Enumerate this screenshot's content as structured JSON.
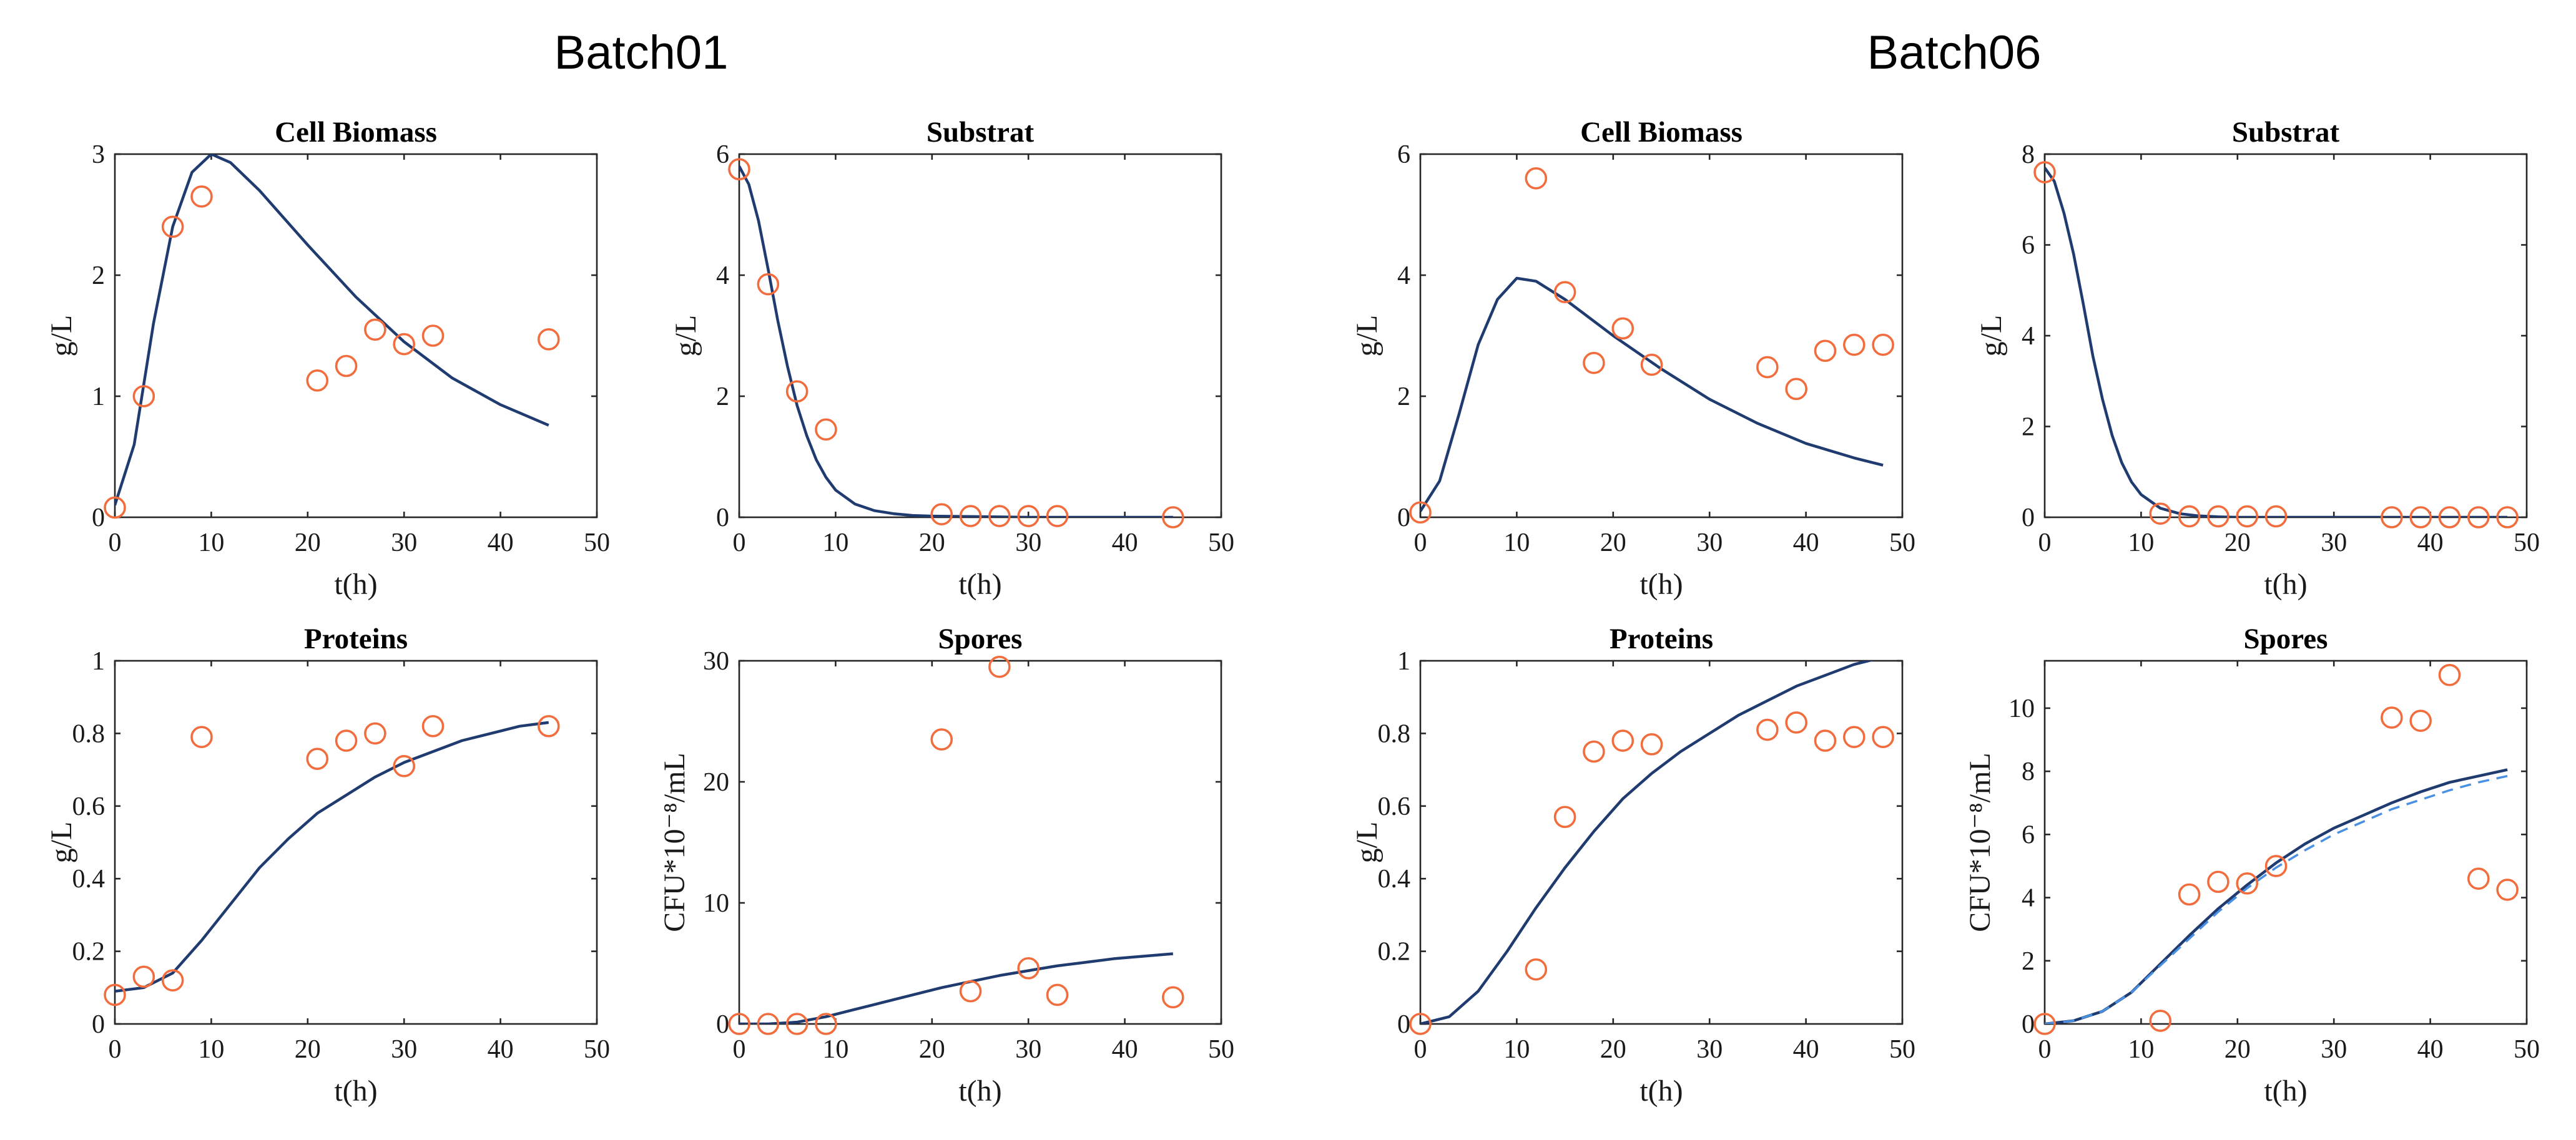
{
  "figure": {
    "batch_titles": [
      "Batch01",
      "Batch06"
    ]
  },
  "chart_data": [
    {
      "id": "b1-biomass",
      "batch": "Batch01",
      "type": "line",
      "title": "Cell Biomass",
      "xlabel": "t(h)",
      "ylabel": "g/L",
      "xlim": [
        0,
        50
      ],
      "ylim": [
        0,
        3
      ],
      "xticks": [
        0,
        10,
        20,
        30,
        40,
        50
      ],
      "yticks": [
        0,
        1,
        2,
        3
      ],
      "series": [
        {
          "name": "model",
          "style": "solid",
          "x": [
            0,
            2,
            4,
            6,
            8,
            10,
            12,
            15,
            20,
            25,
            30,
            35,
            40,
            45
          ],
          "y": [
            0.1,
            0.6,
            1.6,
            2.4,
            2.85,
            3.0,
            2.93,
            2.7,
            2.25,
            1.82,
            1.45,
            1.15,
            0.93,
            0.76
          ]
        },
        {
          "name": "data",
          "style": "marker",
          "x": [
            0,
            3,
            6,
            9,
            21,
            24,
            27,
            30,
            33,
            45
          ],
          "y": [
            0.08,
            1.0,
            2.4,
            2.65,
            1.13,
            1.25,
            1.55,
            1.43,
            1.5,
            1.47
          ]
        }
      ]
    },
    {
      "id": "b1-substrat",
      "batch": "Batch01",
      "type": "line",
      "title": "Substrat",
      "xlabel": "t(h)",
      "ylabel": "g/L",
      "xlim": [
        0,
        50
      ],
      "ylim": [
        0,
        6
      ],
      "xticks": [
        0,
        10,
        20,
        30,
        40,
        50
      ],
      "yticks": [
        0,
        2,
        4,
        6
      ],
      "series": [
        {
          "name": "model",
          "style": "solid",
          "x": [
            0,
            1,
            2,
            3,
            4,
            5,
            6,
            7,
            8,
            9,
            10,
            12,
            14,
            16,
            18,
            20,
            25,
            30,
            35,
            40,
            45
          ],
          "y": [
            5.8,
            5.5,
            4.9,
            4.1,
            3.25,
            2.5,
            1.85,
            1.35,
            0.95,
            0.66,
            0.45,
            0.22,
            0.11,
            0.06,
            0.03,
            0.02,
            0.01,
            0.0,
            0.0,
            0.0,
            0.0
          ]
        },
        {
          "name": "data",
          "style": "marker",
          "x": [
            0,
            3,
            6,
            9,
            21,
            24,
            27,
            30,
            33,
            45
          ],
          "y": [
            5.75,
            3.85,
            2.08,
            1.45,
            0.05,
            0.02,
            0.02,
            0.02,
            0.02,
            0.0
          ]
        }
      ]
    },
    {
      "id": "b6-biomass",
      "batch": "Batch06",
      "type": "line",
      "title": "Cell Biomass",
      "xlabel": "t(h)",
      "ylabel": "g/L",
      "xlim": [
        0,
        50
      ],
      "ylim": [
        0,
        6
      ],
      "xticks": [
        0,
        10,
        20,
        30,
        40,
        50
      ],
      "yticks": [
        0,
        2,
        4,
        6
      ],
      "series": [
        {
          "name": "model",
          "style": "solid",
          "x": [
            0,
            2,
            4,
            6,
            8,
            10,
            12,
            15,
            20,
            25,
            30,
            35,
            40,
            45,
            48
          ],
          "y": [
            0.1,
            0.6,
            1.7,
            2.85,
            3.6,
            3.95,
            3.9,
            3.6,
            3.0,
            2.45,
            1.95,
            1.55,
            1.22,
            0.98,
            0.86
          ]
        },
        {
          "name": "data",
          "style": "marker",
          "x": [
            0,
            12,
            15,
            18,
            21,
            24,
            36,
            39,
            42,
            45,
            48
          ],
          "y": [
            0.08,
            5.6,
            3.72,
            2.55,
            3.12,
            2.52,
            2.48,
            2.12,
            2.75,
            2.85,
            2.85
          ]
        }
      ]
    },
    {
      "id": "b6-substrat",
      "batch": "Batch06",
      "type": "line",
      "title": "Substrat",
      "xlabel": "t(h)",
      "ylabel": "g/L",
      "xlim": [
        0,
        50
      ],
      "ylim": [
        0,
        8
      ],
      "xticks": [
        0,
        10,
        20,
        30,
        40,
        50
      ],
      "yticks": [
        0,
        2,
        4,
        6,
        8
      ],
      "series": [
        {
          "name": "model",
          "style": "solid",
          "x": [
            0,
            1,
            2,
            3,
            4,
            5,
            6,
            7,
            8,
            9,
            10,
            12,
            14,
            16,
            18,
            20,
            25,
            30,
            35,
            40,
            45,
            48
          ],
          "y": [
            7.7,
            7.4,
            6.7,
            5.8,
            4.7,
            3.55,
            2.6,
            1.8,
            1.2,
            0.78,
            0.5,
            0.2,
            0.08,
            0.03,
            0.01,
            0.0,
            0.0,
            0.0,
            0.0,
            0.0,
            0.0,
            0.0
          ]
        },
        {
          "name": "data",
          "style": "marker",
          "x": [
            0,
            12,
            15,
            18,
            21,
            24,
            36,
            39,
            42,
            45,
            48
          ],
          "y": [
            7.6,
            0.08,
            0.02,
            0.02,
            0.02,
            0.02,
            0.0,
            0.0,
            0.0,
            0.0,
            0.0
          ]
        }
      ]
    },
    {
      "id": "b1-proteins",
      "batch": "Batch01",
      "type": "line",
      "title": "Proteins",
      "xlabel": "t(h)",
      "ylabel": "g/L",
      "xlim": [
        0,
        50
      ],
      "ylim": [
        0,
        1
      ],
      "xticks": [
        0,
        10,
        20,
        30,
        40,
        50
      ],
      "yticks": [
        0,
        0.2,
        0.4,
        0.6,
        0.8,
        1
      ],
      "series": [
        {
          "name": "model",
          "style": "solid",
          "x": [
            0,
            3,
            6,
            9,
            12,
            15,
            18,
            21,
            24,
            27,
            30,
            33,
            36,
            39,
            42,
            45
          ],
          "y": [
            0.09,
            0.1,
            0.14,
            0.23,
            0.33,
            0.43,
            0.51,
            0.58,
            0.63,
            0.68,
            0.72,
            0.75,
            0.78,
            0.8,
            0.82,
            0.83
          ]
        },
        {
          "name": "data",
          "style": "marker",
          "x": [
            0,
            3,
            6,
            9,
            21,
            24,
            27,
            30,
            33,
            45
          ],
          "y": [
            0.08,
            0.13,
            0.12,
            0.79,
            0.73,
            0.78,
            0.8,
            0.71,
            0.82,
            0.82
          ]
        }
      ]
    },
    {
      "id": "b1-spores",
      "batch": "Batch01",
      "type": "line",
      "title": "Spores",
      "xlabel": "t(h)",
      "ylabel": "CFU*10⁻⁸/mL",
      "xlim": [
        0,
        50
      ],
      "ylim": [
        0,
        30
      ],
      "xticks": [
        0,
        10,
        20,
        30,
        40,
        50
      ],
      "yticks": [
        0,
        10,
        20,
        30
      ],
      "series": [
        {
          "name": "model",
          "style": "solid",
          "x": [
            0,
            3,
            6,
            9,
            12,
            15,
            18,
            21,
            24,
            27,
            30,
            33,
            36,
            39,
            42,
            45
          ],
          "y": [
            0.0,
            0.0,
            0.15,
            0.6,
            1.2,
            1.8,
            2.4,
            3.0,
            3.5,
            4.0,
            4.4,
            4.8,
            5.1,
            5.4,
            5.6,
            5.8
          ]
        },
        {
          "name": "data",
          "style": "marker",
          "x": [
            0,
            3,
            6,
            9,
            21,
            24,
            27,
            30,
            33,
            45
          ],
          "y": [
            0.0,
            0.0,
            0.0,
            0.0,
            23.5,
            2.7,
            29.5,
            4.6,
            2.4,
            2.2
          ]
        }
      ]
    },
    {
      "id": "b6-proteins",
      "batch": "Batch06",
      "type": "line",
      "title": "Proteins",
      "xlabel": "t(h)",
      "ylabel": "g/L",
      "xlim": [
        0,
        50
      ],
      "ylim": [
        0,
        1
      ],
      "xticks": [
        0,
        10,
        20,
        30,
        40,
        50
      ],
      "yticks": [
        0,
        0.2,
        0.4,
        0.6,
        0.8,
        1
      ],
      "series": [
        {
          "name": "model",
          "style": "solid",
          "x": [
            0,
            3,
            6,
            9,
            12,
            15,
            18,
            21,
            24,
            27,
            30,
            33,
            36,
            39,
            42,
            45,
            48
          ],
          "y": [
            0.0,
            0.02,
            0.09,
            0.2,
            0.32,
            0.43,
            0.53,
            0.62,
            0.69,
            0.75,
            0.8,
            0.85,
            0.89,
            0.93,
            0.96,
            0.99,
            1.01
          ]
        },
        {
          "name": "data",
          "style": "marker",
          "x": [
            0,
            12,
            15,
            18,
            21,
            24,
            36,
            39,
            42,
            45,
            48
          ],
          "y": [
            0.0,
            0.15,
            0.57,
            0.75,
            0.78,
            0.77,
            0.81,
            0.83,
            0.78,
            0.79,
            0.79
          ]
        }
      ]
    },
    {
      "id": "b6-spores",
      "batch": "Batch06",
      "type": "line",
      "title": "Spores",
      "xlabel": "t(h)",
      "ylabel": "CFU*10⁻⁸/mL",
      "xlim": [
        0,
        50
      ],
      "ylim": [
        0,
        11.5
      ],
      "xticks": [
        0,
        10,
        20,
        30,
        40,
        50
      ],
      "yticks": [
        0,
        2,
        4,
        6,
        8,
        10
      ],
      "series": [
        {
          "name": "model",
          "style": "solid",
          "x": [
            0,
            3,
            6,
            9,
            12,
            15,
            18,
            21,
            24,
            27,
            30,
            33,
            36,
            39,
            42,
            45,
            48
          ],
          "y": [
            0.0,
            0.1,
            0.4,
            1.0,
            1.9,
            2.8,
            3.65,
            4.4,
            5.1,
            5.7,
            6.2,
            6.6,
            7.0,
            7.35,
            7.65,
            7.85,
            8.05
          ]
        },
        {
          "name": "model-alt",
          "style": "dashed",
          "x": [
            0,
            3,
            6,
            9,
            12,
            15,
            18,
            21,
            24,
            27,
            30,
            33,
            36,
            39,
            42,
            45,
            48
          ],
          "y": [
            0.0,
            0.1,
            0.4,
            1.0,
            1.85,
            2.7,
            3.55,
            4.3,
            4.95,
            5.5,
            6.0,
            6.4,
            6.8,
            7.1,
            7.4,
            7.65,
            7.85
          ]
        },
        {
          "name": "data",
          "style": "marker",
          "x": [
            0,
            12,
            15,
            18,
            21,
            24,
            36,
            39,
            42,
            45,
            48
          ],
          "y": [
            0.0,
            0.1,
            4.1,
            4.5,
            4.45,
            5.0,
            9.7,
            9.6,
            11.05,
            4.6,
            4.25
          ]
        }
      ]
    }
  ]
}
